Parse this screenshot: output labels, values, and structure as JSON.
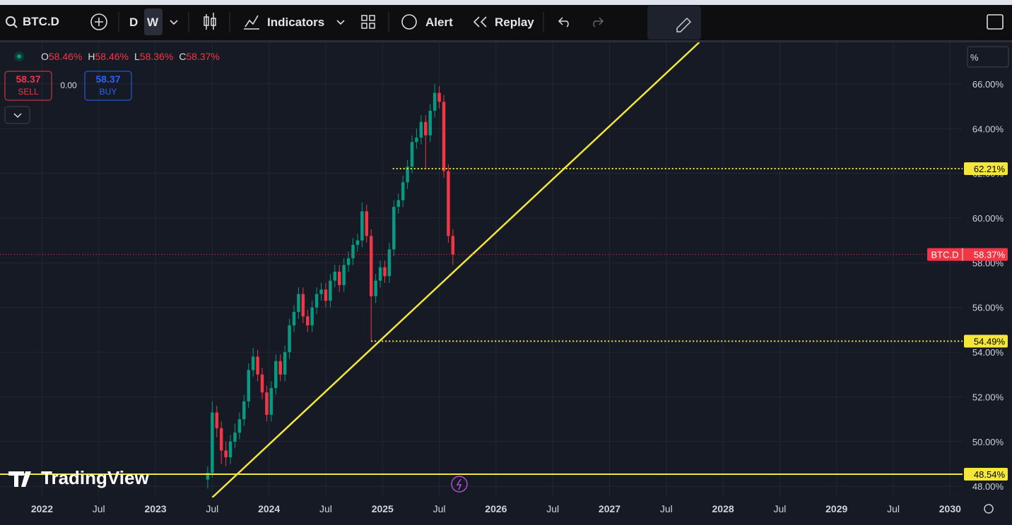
{
  "toolbar": {
    "symbol": "BTC.D",
    "intervals": [
      "D",
      "W"
    ],
    "indicators": "Indicators",
    "alert": "Alert",
    "replay": "Replay"
  },
  "legend": {
    "ohlc": [
      {
        "label": "O",
        "value": "58.46%"
      },
      {
        "label": "H",
        "value": "58.46%"
      },
      {
        "label": "L",
        "value": "58.36%"
      },
      {
        "label": "C",
        "value": "58.37%"
      }
    ]
  },
  "trade": {
    "sell_price": "58.37",
    "sell": "SELL",
    "spread": "0.00",
    "buy_price": "58.37",
    "buy": "BUY"
  },
  "scale_mode": "%",
  "watermark": "TradingView",
  "chart_data": {
    "type": "candlestick",
    "x": [
      2023.46,
      2023.5,
      2023.54,
      2023.58,
      2023.62,
      2023.66,
      2023.7,
      2023.74,
      2023.78,
      2023.82,
      2023.86,
      2023.9,
      2023.94,
      2023.98,
      2024.02,
      2024.06,
      2024.1,
      2024.14,
      2024.18,
      2024.22,
      2024.26,
      2024.3,
      2024.34,
      2024.38,
      2024.42,
      2024.46,
      2024.5,
      2024.54,
      2024.58,
      2024.62,
      2024.66,
      2024.7,
      2024.74,
      2024.78,
      2024.82,
      2024.86,
      2024.9,
      2024.94,
      2024.98,
      2025.02,
      2025.06,
      2025.1,
      2025.14,
      2025.18,
      2025.22,
      2025.26,
      2025.3,
      2025.34,
      2025.38,
      2025.42,
      2025.46,
      2025.5,
      2025.54,
      2025.58,
      2025.62
    ],
    "open": [
      48.3,
      48.6,
      51.3,
      50.6,
      49.6,
      49.3,
      50.0,
      50.4,
      51.0,
      51.8,
      53.2,
      53.8,
      53.0,
      52.2,
      51.2,
      52.4,
      53.6,
      53.0,
      54.0,
      55.2,
      55.8,
      56.6,
      55.6,
      55.2,
      56.0,
      56.6,
      56.8,
      56.3,
      57.2,
      57.6,
      57.0,
      57.9,
      58.2,
      58.8,
      59.0,
      60.3,
      59.2,
      56.5,
      57.2,
      57.8,
      57.4,
      58.6,
      60.5,
      60.8,
      61.6,
      62.3,
      63.4,
      63.6,
      64.3,
      63.7,
      64.8,
      65.6,
      65.2,
      62.1,
      59.2
    ],
    "high": [
      48.9,
      51.8,
      51.6,
      50.9,
      50.0,
      50.3,
      50.8,
      51.3,
      52.1,
      53.5,
      54.2,
      54.1,
      53.3,
      52.5,
      52.7,
      53.9,
      53.9,
      54.3,
      55.5,
      56.1,
      56.9,
      56.9,
      55.9,
      56.3,
      56.9,
      57.1,
      57.1,
      57.5,
      57.9,
      57.9,
      58.2,
      58.5,
      59.1,
      59.3,
      60.7,
      60.6,
      59.5,
      57.5,
      58.1,
      58.1,
      58.9,
      60.8,
      61.1,
      61.9,
      62.6,
      63.7,
      64.0,
      64.6,
      64.6,
      65.1,
      66.0,
      65.9,
      65.5,
      62.4,
      59.5
    ],
    "low": [
      47.9,
      48.4,
      50.2,
      49.0,
      48.9,
      49.0,
      49.7,
      50.1,
      50.7,
      51.5,
      52.9,
      52.7,
      51.9,
      50.9,
      50.9,
      52.1,
      52.7,
      52.7,
      53.7,
      54.9,
      55.5,
      55.3,
      54.9,
      54.9,
      55.7,
      56.3,
      56.0,
      56.0,
      56.9,
      56.7,
      56.7,
      57.6,
      57.9,
      58.5,
      58.7,
      58.9,
      54.5,
      56.2,
      56.9,
      57.1,
      57.1,
      58.3,
      60.2,
      60.5,
      61.3,
      62.0,
      63.1,
      63.3,
      62.2,
      63.4,
      64.5,
      64.9,
      61.8,
      58.9,
      57.9
    ],
    "close": [
      48.6,
      51.3,
      50.6,
      49.6,
      49.3,
      50.0,
      50.4,
      51.0,
      51.8,
      53.2,
      53.8,
      53.0,
      52.2,
      51.2,
      52.4,
      53.6,
      53.0,
      54.0,
      55.2,
      55.8,
      56.6,
      55.6,
      55.2,
      56.0,
      56.6,
      56.8,
      56.3,
      57.2,
      57.6,
      57.0,
      57.9,
      58.2,
      58.8,
      59.0,
      60.3,
      59.2,
      56.5,
      57.2,
      57.8,
      57.4,
      58.6,
      60.5,
      60.8,
      61.6,
      62.3,
      63.4,
      63.6,
      64.3,
      63.7,
      64.8,
      65.6,
      65.2,
      62.1,
      59.2,
      58.37
    ],
    "up_color": "#089981",
    "down_color": "#f23645",
    "xlim": [
      2021.63,
      2030.11
    ],
    "ylim": [
      47.5,
      67.86
    ],
    "xticks": [
      {
        "value": 2022,
        "label": "2022"
      },
      {
        "value": 2022.5,
        "label": "Jul"
      },
      {
        "value": 2023,
        "label": "2023"
      },
      {
        "value": 2023.5,
        "label": "Jul"
      },
      {
        "value": 2024,
        "label": "2024"
      },
      {
        "value": 2024.5,
        "label": "Jul"
      },
      {
        "value": 2025,
        "label": "2025"
      },
      {
        "value": 2025.5,
        "label": "Jul"
      },
      {
        "value": 2026,
        "label": "2026"
      },
      {
        "value": 2026.5,
        "label": "Jul"
      },
      {
        "value": 2027,
        "label": "2027"
      },
      {
        "value": 2027.5,
        "label": "Jul"
      },
      {
        "value": 2028,
        "label": "2028"
      },
      {
        "value": 2028.5,
        "label": "Jul"
      },
      {
        "value": 2029,
        "label": "2029"
      },
      {
        "value": 2029.5,
        "label": "Jul"
      },
      {
        "value": 2030,
        "label": "2030"
      }
    ],
    "yticks": [
      {
        "value": 48,
        "label": "48.00%"
      },
      {
        "value": 50,
        "label": "50.00%"
      },
      {
        "value": 52,
        "label": "52.00%"
      },
      {
        "value": 54,
        "label": "54.00%"
      },
      {
        "value": 56,
        "label": "56.00%"
      },
      {
        "value": 58,
        "label": "58.00%"
      },
      {
        "value": 60,
        "label": "60.00%"
      },
      {
        "value": 62,
        "label": "62.00%"
      },
      {
        "value": 64,
        "label": "64.00%"
      },
      {
        "value": 66,
        "label": "66.00%"
      }
    ],
    "grid": true,
    "levels": [
      {
        "value": 62.21,
        "label": "62.21%",
        "style": "dotted",
        "start": 2025.09
      },
      {
        "value": 54.49,
        "label": "54.49%",
        "style": "dotted",
        "start": 2024.9
      },
      {
        "value": 48.54,
        "label": "48.54%",
        "style": "solid"
      }
    ],
    "level_color": "#f5e63c",
    "trendline": {
      "x": [
        2023.5,
        2027.79
      ],
      "y": [
        47.5,
        67.86
      ]
    },
    "last_price": {
      "value": 58.37,
      "label": "58.37%",
      "name": "BTC.D"
    }
  }
}
